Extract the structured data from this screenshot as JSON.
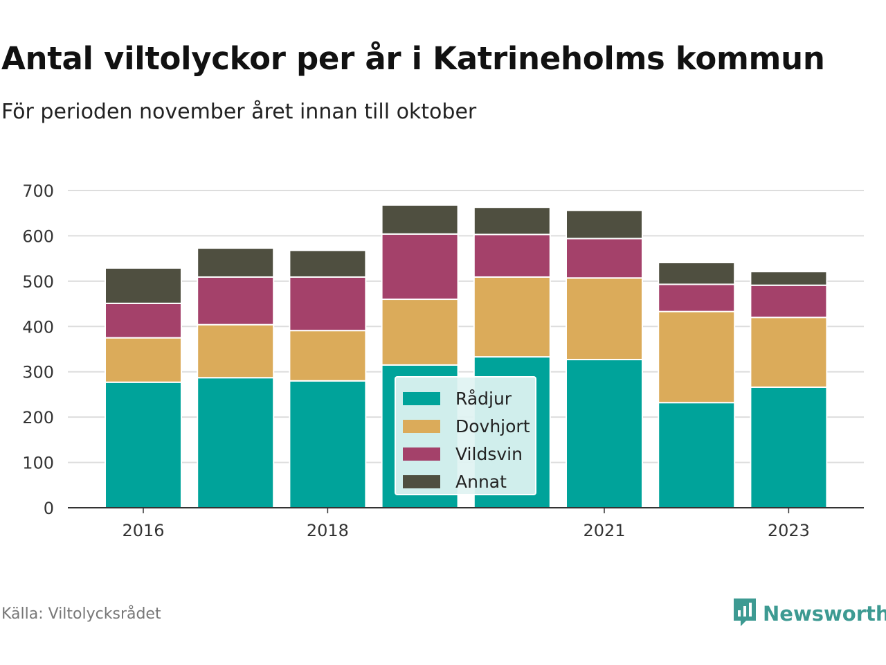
{
  "header": {
    "title": "Antal viltolyckor per år i Katrineholms kommun",
    "subtitle": "För perioden november året innan till oktober"
  },
  "footer": {
    "source": "Källa: Viltolycksrådet",
    "brand": "Newsworthy",
    "brand_icon": "newsworthy-logo-icon",
    "brand_color": "#3d9a92"
  },
  "chart_data": {
    "type": "bar",
    "stacked": true,
    "categories": [
      "2016",
      "2017",
      "2018",
      "2019",
      "2020",
      "2021",
      "2022",
      "2023"
    ],
    "x_tick_labels": [
      "2016",
      "",
      "2018",
      "",
      "",
      "2021",
      "",
      "2023"
    ],
    "y_ticks": [
      0,
      100,
      200,
      300,
      400,
      500,
      600,
      700
    ],
    "ylim": [
      0,
      700
    ],
    "grid": true,
    "legend_position": "center",
    "series": [
      {
        "name": "Rådjur",
        "color": "#00a39a",
        "values": [
          277,
          287,
          280,
          315,
          333,
          327,
          232,
          266
        ]
      },
      {
        "name": "Dovhjort",
        "color": "#dbab5a",
        "values": [
          98,
          117,
          111,
          145,
          176,
          180,
          201,
          154
        ]
      },
      {
        "name": "Vildsvin",
        "color": "#a4416a",
        "values": [
          76,
          105,
          118,
          144,
          94,
          87,
          60,
          71
        ]
      },
      {
        "name": "Annat",
        "color": "#4f4f40",
        "values": [
          78,
          64,
          59,
          64,
          60,
          62,
          48,
          30
        ]
      }
    ]
  }
}
